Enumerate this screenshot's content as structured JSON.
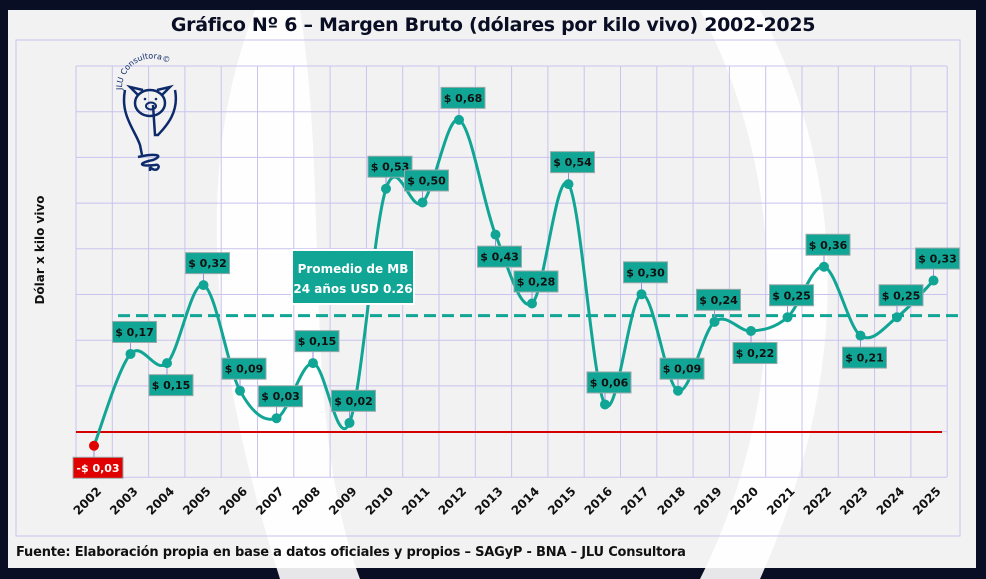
{
  "chart_data": {
    "type": "line",
    "title": "Gráfico Nº 6 – Margen Bruto (dólares por kilo vivo) 2002-2025",
    "xlabel": "",
    "ylabel": "Dólar x kilo vivo",
    "categories": [
      "2002",
      "2003",
      "2004",
      "2005",
      "2006",
      "2007",
      "2008",
      "2009",
      "2010",
      "2011",
      "2012",
      "2013",
      "2014",
      "2015",
      "2016",
      "2017",
      "2018",
      "2019",
      "2020",
      "2021",
      "2022",
      "2023",
      "2024",
      "2025"
    ],
    "values": [
      -0.03,
      0.17,
      0.15,
      0.32,
      0.09,
      0.03,
      0.15,
      0.02,
      0.53,
      0.5,
      0.68,
      0.43,
      0.28,
      0.54,
      0.06,
      0.3,
      0.09,
      0.24,
      0.22,
      0.25,
      0.36,
      0.21,
      0.25,
      0.33
    ],
    "data_labels": [
      "-$ 0,03",
      "$ 0,17",
      "$ 0,15",
      "$ 0,32",
      "$ 0,09",
      "$ 0,03",
      "$ 0,15",
      "$ 0,02",
      "$ 0,53",
      "$ 0,50",
      "$ 0,68",
      "$ 0,43",
      "$ 0,28",
      "$ 0,54",
      "$ 0,06",
      "$ 0,30",
      "$ 0,09",
      "$ 0,24",
      "$ 0,22",
      "$ 0,25",
      "$ 0,36",
      "$ 0,21",
      "$ 0,25",
      "$ 0,33"
    ],
    "average": 0.26,
    "average_label_line1": "Promedio de MB",
    "average_label_line2": "24 años USD 0.26",
    "ylim": [
      -0.1,
      0.8
    ],
    "grid": true,
    "colors": {
      "line": "#10a595",
      "negative": "#e00000",
      "zero_line": "#d40000",
      "grid": "#c9c3ee",
      "label_bg": "#10a595"
    }
  },
  "logo_text": "JLU Consultora©",
  "source": "Fuente: Elaboración propia en base a datos oficiales y propios – SAGyP - BNA – JLU Consultora"
}
